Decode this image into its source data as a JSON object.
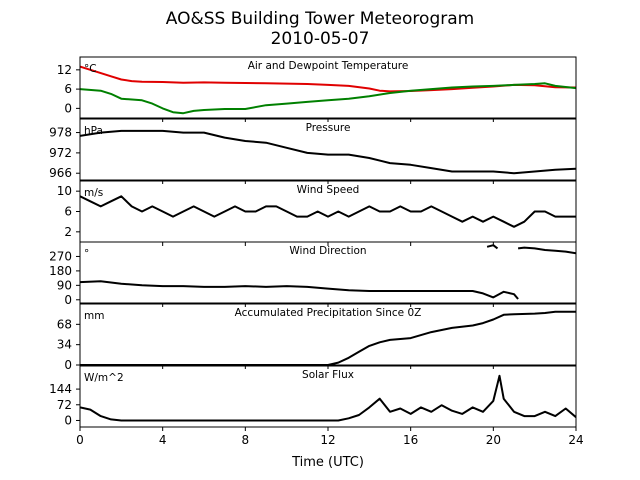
{
  "chart_data": {
    "type": "line",
    "title": "AO&SS Building Tower Meteorogram",
    "subtitle": "2010-05-07",
    "xlabel": "Time (UTC)",
    "xlim": [
      0,
      24
    ],
    "xticks": [
      0,
      4,
      8,
      12,
      16,
      20,
      24
    ],
    "panels": [
      {
        "title": "Air and Dewpoint Temperature",
        "unit": "°C",
        "ylim": [
          -3,
          16
        ],
        "yticks": [
          0,
          6,
          12
        ],
        "series": [
          {
            "color": "#e00000",
            "x": [
              0,
              0.5,
              1,
              1.5,
              2,
              2.5,
              3,
              4,
              5,
              6,
              7,
              8,
              9,
              10,
              11,
              12,
              13,
              14,
              14.5,
              15,
              16,
              17,
              18,
              19,
              20,
              21,
              22,
              23,
              24
            ],
            "y": [
              13,
              12,
              11,
              10,
              9,
              8.5,
              8.3,
              8.2,
              8,
              8.1,
              8,
              7.9,
              7.8,
              7.7,
              7.6,
              7.3,
              7,
              6.2,
              5.5,
              5.3,
              5.4,
              5.7,
              6,
              6.4,
              6.8,
              7.3,
              7.2,
              6.6,
              6.5
            ]
          },
          {
            "color": "#008000",
            "x": [
              0,
              1,
              1.5,
              2,
              3,
              3.5,
              4,
              4.5,
              5,
              5.5,
              6,
              7,
              8,
              9,
              10,
              11,
              12,
              13,
              14,
              15,
              16,
              17,
              18,
              19,
              20,
              21,
              22,
              22.5,
              23,
              24
            ],
            "y": [
              6,
              5.5,
              4.5,
              3,
              2.5,
              1.5,
              0,
              -1.2,
              -1.5,
              -0.8,
              -0.5,
              -0.2,
              -0.2,
              1,
              1.5,
              2,
              2.5,
              3,
              3.8,
              4.8,
              5.5,
              6,
              6.5,
              6.8,
              7,
              7.3,
              7.6,
              7.8,
              7,
              6.3
            ]
          }
        ]
      },
      {
        "title": "Pressure",
        "unit": "hPa",
        "ylim": [
          964,
          982
        ],
        "yticks": [
          966,
          972,
          978
        ],
        "series": [
          {
            "color": "#000000",
            "x": [
              0,
              1,
              2,
              3,
              4,
              5,
              6,
              7,
              8,
              9,
              10,
              11,
              12,
              13,
              14,
              15,
              16,
              17,
              18,
              19,
              20,
              21,
              22,
              23,
              24
            ],
            "y": [
              977,
              978,
              978.5,
              978.5,
              978.5,
              978,
              978,
              976.5,
              975.5,
              975,
              973.5,
              972,
              971.5,
              971.5,
              970.5,
              969,
              968.5,
              967.5,
              966.5,
              966.5,
              966.5,
              966,
              966.5,
              967,
              967.3
            ]
          }
        ]
      },
      {
        "title": "Wind Speed",
        "unit": "m/s",
        "ylim": [
          0,
          12
        ],
        "yticks": [
          2,
          6,
          10
        ],
        "series": [
          {
            "color": "#000000",
            "x": [
              0,
              0.5,
              1,
              1.5,
              2,
              2.5,
              3,
              3.5,
              4,
              4.5,
              5,
              5.5,
              6,
              6.5,
              7,
              7.5,
              8,
              8.5,
              9,
              9.5,
              10,
              10.5,
              11,
              11.5,
              12,
              12.5,
              13,
              13.5,
              14,
              14.5,
              15,
              15.5,
              16,
              16.5,
              17,
              17.5,
              18,
              18.5,
              19,
              19.5,
              20,
              20.5,
              21,
              21.5,
              22,
              22.5,
              23,
              23.5,
              24
            ],
            "y": [
              9,
              8,
              7,
              8,
              9,
              7,
              6,
              7,
              6,
              5,
              6,
              7,
              6,
              5,
              6,
              7,
              6,
              6,
              7,
              7,
              6,
              5,
              5,
              6,
              5,
              6,
              5,
              6,
              7,
              6,
              6,
              7,
              6,
              6,
              7,
              6,
              5,
              4,
              5,
              4,
              5,
              4,
              3,
              4,
              6,
              6,
              5,
              5,
              5
            ]
          }
        ]
      },
      {
        "title": "Wind Direction",
        "unit": "°",
        "ylim": [
          -20,
          360
        ],
        "yticks": [
          0,
          90,
          180,
          270
        ],
        "series": [
          {
            "color": "#000000",
            "x": [
              0,
              1,
              2,
              3,
              4,
              5,
              6,
              7,
              8,
              9,
              10,
              11,
              12,
              13,
              14,
              15,
              16,
              17,
              18,
              19,
              19.5,
              20,
              20.5,
              21,
              21.2
            ],
            "y": [
              110,
              115,
              100,
              90,
              85,
              85,
              80,
              80,
              85,
              80,
              85,
              80,
              70,
              60,
              55,
              55,
              55,
              55,
              55,
              55,
              40,
              15,
              50,
              35,
              5
            ]
          },
          {
            "color": "#000000",
            "x": [
              19.7,
              20,
              20.2
            ],
            "y": [
              330,
              340,
              320
            ]
          },
          {
            "color": "#000000",
            "x": [
              21.2,
              21.5,
              22,
              22.5,
              23,
              23.5,
              24
            ],
            "y": [
              320,
              325,
              320,
              310,
              305,
              300,
              290
            ]
          }
        ]
      },
      {
        "title": "Accumulated Precipitation Since 0Z",
        "unit": "mm",
        "ylim": [
          0,
          102
        ],
        "yticks": [
          0,
          34,
          68
        ],
        "series": [
          {
            "color": "#000000",
            "x": [
              0,
              12,
              12.5,
              13,
              13.5,
              14,
              14.5,
              15,
              16,
              17,
              18,
              19,
              19.5,
              20,
              20.5,
              21,
              22,
              22.5,
              23,
              24
            ],
            "y": [
              0,
              0,
              4,
              12,
              22,
              32,
              38,
              42,
              45,
              55,
              62,
              66,
              70,
              76,
              84,
              85,
              86,
              87,
              89,
              89
            ]
          }
        ]
      },
      {
        "title": "Solar Flux",
        "unit": "W/m^2",
        "ylim": [
          -30,
          250
        ],
        "yticks": [
          0,
          72,
          144
        ],
        "series": [
          {
            "color": "#000000",
            "x": [
              0,
              0.5,
              1,
              1.5,
              2,
              4,
              6,
              8,
              10,
              11,
              12,
              12.5,
              13,
              13.5,
              14,
              14.5,
              15,
              15.5,
              16,
              16.5,
              17,
              17.5,
              18,
              18.5,
              19,
              19.5,
              20,
              20.3,
              20.5,
              21,
              21.5,
              22,
              22.5,
              23,
              23.5,
              24
            ],
            "y": [
              60,
              50,
              20,
              5,
              0,
              0,
              0,
              0,
              0,
              0,
              0,
              0,
              10,
              25,
              60,
              100,
              40,
              55,
              30,
              60,
              40,
              70,
              45,
              30,
              60,
              40,
              90,
              205,
              100,
              40,
              20,
              20,
              40,
              20,
              55,
              15
            ]
          }
        ]
      }
    ]
  }
}
